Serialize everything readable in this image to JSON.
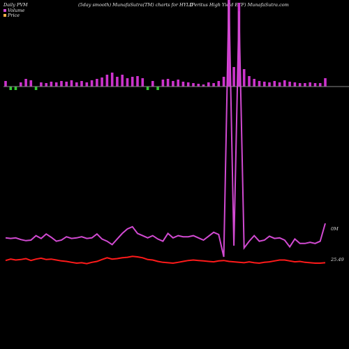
{
  "header": {
    "left": "Daily PVM",
    "middle": "(5day smooth) MunafaSutra(TM) charts for HYLD",
    "right": "(Peritus High Yield ETF) MunafaSutra.com"
  },
  "legend": [
    {
      "label": "Volume",
      "color": "#d24ad2"
    },
    {
      "label": "Price",
      "color": "#ffb347"
    }
  ],
  "colors": {
    "volume_up": "#cc33cc",
    "volume_down": "#33cc33",
    "volume_line": "#d24ad2",
    "price_line": "#ff1a1a",
    "baseline": "#888888"
  },
  "chart_data": {
    "type": "bar",
    "labels": {
      "volume_axis": "0M",
      "price_axis": "25.49"
    },
    "volume_bars": [
      {
        "v": 8,
        "dir": "up"
      },
      {
        "v": 7,
        "dir": "down"
      },
      {
        "v": 8,
        "dir": "down"
      },
      {
        "v": 6,
        "dir": "up"
      },
      {
        "v": 11,
        "dir": "up"
      },
      {
        "v": 9,
        "dir": "up"
      },
      {
        "v": 7,
        "dir": "down"
      },
      {
        "v": 6,
        "dir": "up"
      },
      {
        "v": 5,
        "dir": "up"
      },
      {
        "v": 7,
        "dir": "up"
      },
      {
        "v": 6,
        "dir": "up"
      },
      {
        "v": 8,
        "dir": "up"
      },
      {
        "v": 7,
        "dir": "up"
      },
      {
        "v": 9,
        "dir": "up"
      },
      {
        "v": 6,
        "dir": "up"
      },
      {
        "v": 8,
        "dir": "up"
      },
      {
        "v": 6,
        "dir": "up"
      },
      {
        "v": 9,
        "dir": "up"
      },
      {
        "v": 11,
        "dir": "up"
      },
      {
        "v": 13,
        "dir": "up"
      },
      {
        "v": 17,
        "dir": "up"
      },
      {
        "v": 20,
        "dir": "up"
      },
      {
        "v": 14,
        "dir": "up"
      },
      {
        "v": 17,
        "dir": "up"
      },
      {
        "v": 12,
        "dir": "up"
      },
      {
        "v": 14,
        "dir": "up"
      },
      {
        "v": 15,
        "dir": "up"
      },
      {
        "v": 12,
        "dir": "up"
      },
      {
        "v": 6,
        "dir": "down"
      },
      {
        "v": 8,
        "dir": "up"
      },
      {
        "v": 7,
        "dir": "down"
      },
      {
        "v": 10,
        "dir": "up"
      },
      {
        "v": 11,
        "dir": "up"
      },
      {
        "v": 8,
        "dir": "up"
      },
      {
        "v": 10,
        "dir": "up"
      },
      {
        "v": 7,
        "dir": "up"
      },
      {
        "v": 6,
        "dir": "up"
      },
      {
        "v": 5,
        "dir": "up"
      },
      {
        "v": 4,
        "dir": "up"
      },
      {
        "v": 3,
        "dir": "up"
      },
      {
        "v": 6,
        "dir": "up"
      },
      {
        "v": 5,
        "dir": "up"
      },
      {
        "v": 8,
        "dir": "up"
      },
      {
        "v": 14,
        "dir": "up"
      },
      {
        "v": 150,
        "dir": "up"
      },
      {
        "v": 28,
        "dir": "up"
      },
      {
        "v": 120,
        "dir": "up"
      },
      {
        "v": 25,
        "dir": "up"
      },
      {
        "v": 15,
        "dir": "up"
      },
      {
        "v": 11,
        "dir": "up"
      },
      {
        "v": 8,
        "dir": "up"
      },
      {
        "v": 7,
        "dir": "up"
      },
      {
        "v": 6,
        "dir": "up"
      },
      {
        "v": 8,
        "dir": "up"
      },
      {
        "v": 6,
        "dir": "up"
      },
      {
        "v": 9,
        "dir": "up"
      },
      {
        "v": 7,
        "dir": "up"
      },
      {
        "v": 6,
        "dir": "up"
      },
      {
        "v": 5,
        "dir": "up"
      },
      {
        "v": 5,
        "dir": "up"
      },
      {
        "v": 6,
        "dir": "up"
      },
      {
        "v": 5,
        "dir": "up"
      },
      {
        "v": 5,
        "dir": "up"
      },
      {
        "v": 12,
        "dir": "up"
      }
    ],
    "volume_line": [
      44,
      43,
      44,
      41,
      39,
      40,
      48,
      43,
      51,
      45,
      38,
      40,
      46,
      43,
      44,
      46,
      43,
      44,
      51,
      42,
      38,
      32,
      42,
      52,
      60,
      64,
      52,
      48,
      44,
      48,
      42,
      38,
      52,
      44,
      48,
      46,
      46,
      48,
      44,
      40,
      47,
      54,
      50,
      10,
      480,
      30,
      450,
      26,
      38,
      48,
      38,
      40,
      47,
      43,
      44,
      40,
      28,
      42,
      34,
      34,
      36,
      34,
      38,
      70
    ],
    "price_line": [
      25.49,
      25.52,
      25.5,
      25.51,
      25.53,
      25.49,
      25.52,
      25.54,
      25.51,
      25.52,
      25.5,
      25.48,
      25.47,
      25.45,
      25.43,
      25.44,
      25.42,
      25.45,
      25.47,
      25.51,
      25.55,
      25.52,
      25.53,
      25.55,
      25.56,
      25.58,
      25.57,
      25.55,
      25.51,
      25.5,
      25.47,
      25.45,
      25.44,
      25.43,
      25.45,
      25.47,
      25.49,
      25.5,
      25.49,
      25.48,
      25.47,
      25.46,
      25.48,
      25.49,
      25.47,
      25.46,
      25.45,
      25.44,
      25.46,
      25.44,
      25.43,
      25.45,
      25.46,
      25.48,
      25.5,
      25.5,
      25.48,
      25.46,
      25.47,
      25.45,
      25.44,
      25.43,
      25.43,
      25.44
    ]
  }
}
